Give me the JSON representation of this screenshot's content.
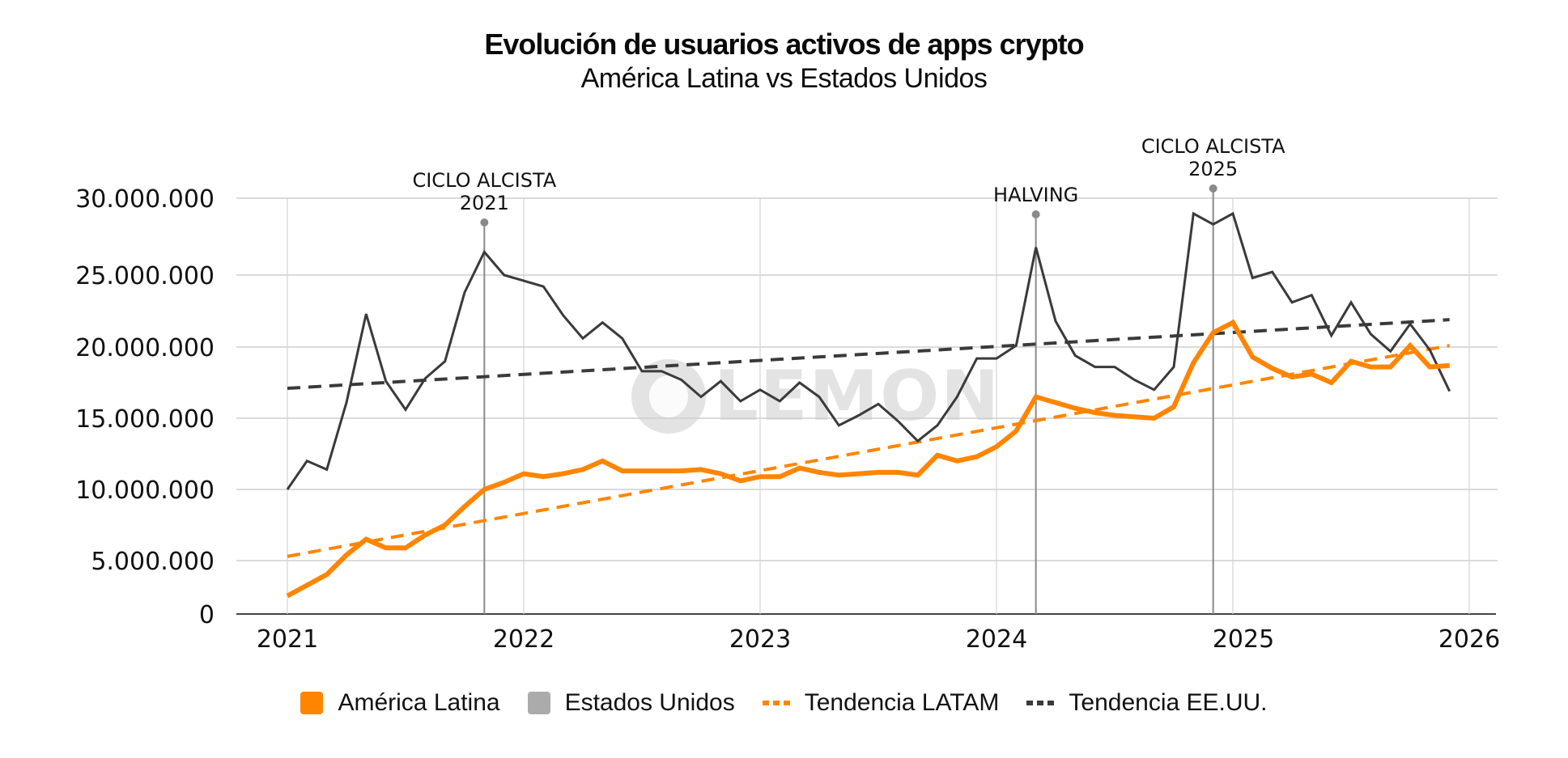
{
  "chart_data": {
    "type": "line",
    "title": "Evolución de usuarios activos de apps crypto",
    "subtitle": "América Latina vs Estados Unidos",
    "xlabel": "",
    "ylabel": "",
    "x_range": [
      2021.0,
      2026.0
    ],
    "ylim": [
      0,
      30000000
    ],
    "grid": true,
    "legend_position": "bottom-center",
    "y_ticks": [
      {
        "value": 0,
        "label": "0"
      },
      {
        "value": 5000000,
        "label": "5.000.000"
      },
      {
        "value": 10000000,
        "label": "10.000.000"
      },
      {
        "value": 15000000,
        "label": "15.000.000"
      },
      {
        "value": 20000000,
        "label": "20.000.000"
      },
      {
        "value": 25000000,
        "label": "25.000.000"
      },
      {
        "value": 30000000,
        "label": "30.000.000"
      }
    ],
    "x_ticks": [
      {
        "value": 2021,
        "label": "2021"
      },
      {
        "value": 2022,
        "label": "2022"
      },
      {
        "value": 2023,
        "label": "2023"
      },
      {
        "value": 2024,
        "label": "2024"
      },
      {
        "value": 2025,
        "label": "2025"
      },
      {
        "value": 2026,
        "label": "2026"
      }
    ],
    "x_months_start": "2021-01",
    "series": [
      {
        "name": "América Latina",
        "color": "#FF8500",
        "style": "solid",
        "values_millions": [
          1.7,
          2.7,
          3.7,
          5.4,
          6.5,
          5.9,
          5.9,
          6.8,
          7.5,
          8.8,
          10.0,
          10.5,
          11.1,
          10.9,
          11.1,
          11.4,
          12.0,
          11.3,
          11.3,
          11.3,
          11.3,
          11.4,
          11.1,
          10.6,
          10.9,
          10.9,
          11.5,
          11.2,
          11.0,
          11.1,
          11.2,
          11.2,
          11.0,
          12.4,
          12.0,
          12.3,
          13.0,
          14.1,
          16.5,
          16.1,
          15.7,
          15.4,
          15.2,
          15.1,
          15.0,
          15.8,
          18.9,
          21.0,
          21.7,
          19.3,
          18.5,
          17.9,
          18.1,
          17.5,
          19.0,
          18.6,
          18.6,
          20.1,
          18.6,
          18.7
        ]
      },
      {
        "name": "Estados Unidos",
        "color": "#3a3a3a",
        "legend_color": "#ababab",
        "style": "solid",
        "values_millions": [
          10.0,
          12.0,
          11.4,
          16.1,
          22.3,
          17.6,
          15.6,
          17.8,
          19.0,
          23.8,
          26.5,
          25.0,
          24.6,
          24.2,
          22.2,
          20.6,
          21.7,
          20.6,
          18.3,
          18.3,
          17.7,
          16.5,
          17.6,
          16.2,
          17.0,
          16.2,
          17.5,
          16.5,
          14.5,
          15.2,
          16.0,
          14.8,
          13.4,
          14.5,
          16.5,
          19.2,
          19.2,
          20.1,
          26.8,
          21.8,
          19.4,
          18.6,
          18.6,
          17.7,
          17.0,
          18.6,
          29.0,
          28.3,
          29.0,
          24.8,
          25.2,
          23.1,
          23.6,
          20.8,
          23.1,
          20.9,
          19.7,
          21.6,
          19.8,
          16.9
        ]
      },
      {
        "name": "Tendencia LATAM",
        "color": "#FF8500",
        "style": "dashed",
        "start_millions": 5.3,
        "end_millions": 20.1
      },
      {
        "name": "Tendencia EE.UU.",
        "color": "#3a3a3a",
        "style": "dashed",
        "start_millions": 17.1,
        "end_millions": 21.9
      }
    ],
    "annotations": [
      {
        "label_lines": [
          "CICLO ALCISTA",
          "2021"
        ],
        "month_index": 10
      },
      {
        "label_lines": [
          "HALVING"
        ],
        "month_index": 38
      },
      {
        "label_lines": [
          "CICLO ALCISTA",
          "2025"
        ],
        "month_index": 47
      }
    ]
  },
  "legend": [
    {
      "label": "América Latina",
      "kind": "swatch",
      "color": "#FF8500"
    },
    {
      "label": "Estados Unidos",
      "kind": "swatch",
      "color": "#ababab"
    },
    {
      "label": "Tendencia LATAM",
      "kind": "dash",
      "color": "#FF8500"
    },
    {
      "label": "Tendencia EE.UU.",
      "kind": "dash",
      "color": "#3a3a3a"
    }
  ],
  "watermark": {
    "text": "LEMON"
  }
}
